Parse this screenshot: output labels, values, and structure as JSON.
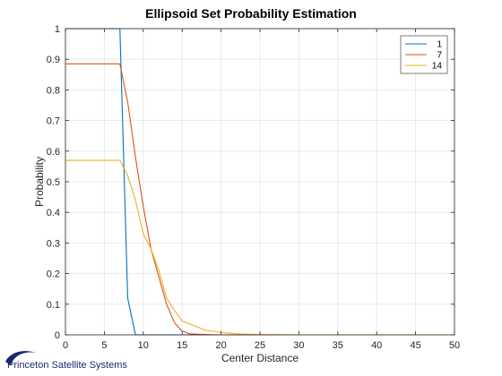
{
  "chart_data": {
    "type": "line",
    "title": "Ellipsoid Set Probability Estimation",
    "xlabel": "Center Distance",
    "ylabel": "Probability",
    "xlim": [
      0,
      50
    ],
    "ylim": [
      0,
      1
    ],
    "xticks": [
      0,
      5,
      10,
      15,
      20,
      25,
      30,
      35,
      40,
      45,
      50
    ],
    "yticks": [
      0,
      0.1,
      0.2,
      0.3,
      0.4,
      0.5,
      0.6,
      0.7,
      0.8,
      0.9,
      1
    ],
    "grid": true,
    "legend_position": "top-right",
    "series": [
      {
        "name": "1",
        "color": "#0072BD",
        "x": [
          0,
          7,
          8,
          9,
          10,
          49
        ],
        "y": [
          1,
          1,
          0.12,
          0,
          0,
          0
        ]
      },
      {
        "name": "7",
        "color": "#D95319",
        "x": [
          0,
          1,
          2,
          3,
          4,
          5,
          6,
          7,
          8,
          9,
          10,
          11,
          12,
          13,
          14,
          15,
          16,
          18,
          20,
          25,
          49
        ],
        "y": [
          0.885,
          0.885,
          0.885,
          0.885,
          0.885,
          0.885,
          0.885,
          0.885,
          0.76,
          0.58,
          0.42,
          0.28,
          0.19,
          0.1,
          0.04,
          0.012,
          0.003,
          0.001,
          0,
          0,
          0
        ]
      },
      {
        "name": "14",
        "color": "#EDB120",
        "x": [
          0,
          1,
          2,
          3,
          4,
          5,
          6,
          7,
          8,
          9,
          10,
          11,
          12,
          13,
          14,
          15,
          16,
          18,
          20,
          22,
          25,
          30,
          49
        ],
        "y": [
          0.57,
          0.57,
          0.57,
          0.57,
          0.57,
          0.57,
          0.57,
          0.57,
          0.52,
          0.44,
          0.33,
          0.28,
          0.21,
          0.12,
          0.08,
          0.045,
          0.035,
          0.015,
          0.008,
          0.003,
          0.001,
          0,
          0
        ]
      }
    ]
  },
  "footer": {
    "logo_text": "Princeton Satellite Systems",
    "logo_icon": "swoosh-icon",
    "logo_color": "#1a2a6c"
  }
}
